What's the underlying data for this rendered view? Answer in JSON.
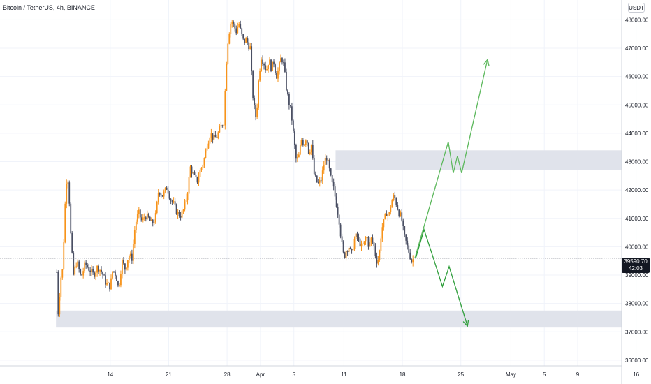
{
  "header": {
    "title": "Bitcoin / TetherUS, 4h, BINANCE",
    "unit_badge": "USDT"
  },
  "price_tag": {
    "price": "39590.70",
    "countdown": "42:03"
  },
  "colors": {
    "up": "#f7931a",
    "down": "#4a4f63",
    "zone": "#e0e3eb",
    "projection": "#5cb85c",
    "projection_down": "#2e9e3a",
    "grid": "#f0f3fa",
    "axis_text": "#131722"
  },
  "chart_data": {
    "type": "candlestick",
    "y_axis": {
      "range": [
        35800,
        48700
      ],
      "ticks": [
        36000,
        37000,
        38000,
        39000,
        40000,
        41000,
        42000,
        43000,
        44000,
        45000,
        46000,
        47000,
        48000
      ],
      "tick_labels": [
        "36000.00",
        "37000.00",
        "38000.00",
        "39000.00",
        "40000.00",
        "41000.00",
        "42000.00",
        "43000.00",
        "44000.00",
        "45000.00",
        "46000.00",
        "47000.00",
        "48000.00"
      ]
    },
    "x_axis": {
      "ticks": [
        {
          "label": "14",
          "day": 14
        },
        {
          "label": "21",
          "day": 21
        },
        {
          "label": "28",
          "day": 28
        },
        {
          "label": "Apr",
          "day": 32
        },
        {
          "label": "5",
          "day": 36
        },
        {
          "label": "11",
          "day": 42
        },
        {
          "label": "18",
          "day": 49
        },
        {
          "label": "25",
          "day": 56
        },
        {
          "label": "May",
          "day": 62
        },
        {
          "label": "5",
          "day": 66
        },
        {
          "label": "9",
          "day": 70
        },
        {
          "label": "16",
          "day": 77
        }
      ]
    },
    "close_path": [
      [
        7.6,
        39100
      ],
      [
        7.8,
        37400
      ],
      [
        8.0,
        38800
      ],
      [
        8.3,
        39200
      ],
      [
        8.6,
        41500
      ],
      [
        8.8,
        42500
      ],
      [
        9.0,
        42300
      ],
      [
        9.3,
        40200
      ],
      [
        9.6,
        39000
      ],
      [
        10.0,
        39500
      ],
      [
        10.5,
        38900
      ],
      [
        11.0,
        39400
      ],
      [
        11.5,
        39200
      ],
      [
        12.0,
        39000
      ],
      [
        12.5,
        39300
      ],
      [
        13.0,
        39100
      ],
      [
        13.5,
        38700
      ],
      [
        14.0,
        38600
      ],
      [
        14.3,
        39200
      ],
      [
        14.7,
        39000
      ],
      [
        15.0,
        38500
      ],
      [
        15.4,
        39500
      ],
      [
        15.8,
        39200
      ],
      [
        16.2,
        39700
      ],
      [
        16.6,
        39600
      ],
      [
        17.0,
        40800
      ],
      [
        17.4,
        41200
      ],
      [
        17.8,
        40900
      ],
      [
        18.2,
        41100
      ],
      [
        18.6,
        41000
      ],
      [
        19.0,
        40800
      ],
      [
        19.4,
        41000
      ],
      [
        19.8,
        42000
      ],
      [
        20.3,
        41800
      ],
      [
        20.8,
        42100
      ],
      [
        21.2,
        41700
      ],
      [
        21.6,
        41500
      ],
      [
        22.0,
        41200
      ],
      [
        22.4,
        41100
      ],
      [
        22.8,
        41300
      ],
      [
        23.2,
        41800
      ],
      [
        23.6,
        42800
      ],
      [
        24.0,
        42500
      ],
      [
        24.4,
        42300
      ],
      [
        24.8,
        42700
      ],
      [
        25.2,
        43000
      ],
      [
        25.6,
        43600
      ],
      [
        26.0,
        44000
      ],
      [
        26.4,
        43800
      ],
      [
        26.8,
        43900
      ],
      [
        27.2,
        44200
      ],
      [
        27.6,
        44400
      ],
      [
        28.0,
        47000
      ],
      [
        28.2,
        47500
      ],
      [
        28.5,
        48000
      ],
      [
        28.8,
        47800
      ],
      [
        29.1,
        47600
      ],
      [
        29.4,
        47900
      ],
      [
        29.7,
        47500
      ],
      [
        30.0,
        47200
      ],
      [
        30.3,
        47300
      ],
      [
        30.6,
        47100
      ],
      [
        30.8,
        47000
      ],
      [
        31.0,
        45600
      ],
      [
        31.2,
        45000
      ],
      [
        31.5,
        44500
      ],
      [
        31.8,
        46000
      ],
      [
        32.1,
        46700
      ],
      [
        32.4,
        46500
      ],
      [
        32.7,
        46200
      ],
      [
        33.0,
        46600
      ],
      [
        33.3,
        46300
      ],
      [
        33.6,
        46500
      ],
      [
        33.9,
        46000
      ],
      [
        34.2,
        46300
      ],
      [
        34.5,
        46700
      ],
      [
        34.8,
        46400
      ],
      [
        35.1,
        45600
      ],
      [
        35.4,
        45100
      ],
      [
        35.7,
        44700
      ],
      [
        36.0,
        43800
      ],
      [
        36.3,
        43000
      ],
      [
        36.6,
        43200
      ],
      [
        36.9,
        43800
      ],
      [
        37.2,
        43600
      ],
      [
        37.5,
        43900
      ],
      [
        37.8,
        43300
      ],
      [
        38.1,
        43600
      ],
      [
        38.4,
        42600
      ],
      [
        38.7,
        42300
      ],
      [
        39.0,
        42200
      ],
      [
        39.3,
        42400
      ],
      [
        39.6,
        42900
      ],
      [
        39.9,
        43200
      ],
      [
        40.2,
        42800
      ],
      [
        40.5,
        42300
      ],
      [
        40.8,
        42000
      ],
      [
        41.1,
        41500
      ],
      [
        41.4,
        41000
      ],
      [
        41.7,
        40200
      ],
      [
        42.0,
        39600
      ],
      [
        42.3,
        39900
      ],
      [
        42.6,
        40000
      ],
      [
        42.9,
        39700
      ],
      [
        43.2,
        40200
      ],
      [
        43.5,
        40400
      ],
      [
        43.8,
        40200
      ],
      [
        44.1,
        40000
      ],
      [
        44.4,
        40100
      ],
      [
        44.7,
        40400
      ],
      [
        45.0,
        40000
      ],
      [
        45.3,
        40300
      ],
      [
        45.6,
        40000
      ],
      [
        45.9,
        39500
      ],
      [
        46.2,
        39600
      ],
      [
        46.5,
        40600
      ],
      [
        46.8,
        40900
      ],
      [
        47.1,
        41200
      ],
      [
        47.4,
        41100
      ],
      [
        47.7,
        41600
      ],
      [
        48.0,
        41800
      ],
      [
        48.3,
        41500
      ],
      [
        48.6,
        41200
      ],
      [
        48.9,
        41000
      ],
      [
        49.2,
        40400
      ],
      [
        49.5,
        40100
      ],
      [
        49.8,
        39800
      ],
      [
        50.1,
        39500
      ],
      [
        50.4,
        39600
      ]
    ],
    "zones": [
      {
        "from_day": 41,
        "to_day": 80,
        "low": 42700,
        "high": 43400
      },
      {
        "from_day": 7.5,
        "to_day": 80,
        "low": 37150,
        "high": 37750
      }
    ],
    "current_price_line": 39590.7,
    "projection_up": [
      [
        50.5,
        39600
      ],
      [
        54.5,
        43700
      ],
      [
        55.1,
        42600
      ],
      [
        55.6,
        43200
      ],
      [
        56.1,
        42600
      ],
      [
        59.2,
        46600
      ]
    ],
    "projection_down": [
      [
        50.6,
        39600
      ],
      [
        51.6,
        40600
      ],
      [
        52.6,
        39700
      ],
      [
        53.8,
        38600
      ],
      [
        54.6,
        39300
      ],
      [
        56.8,
        37200
      ]
    ]
  }
}
